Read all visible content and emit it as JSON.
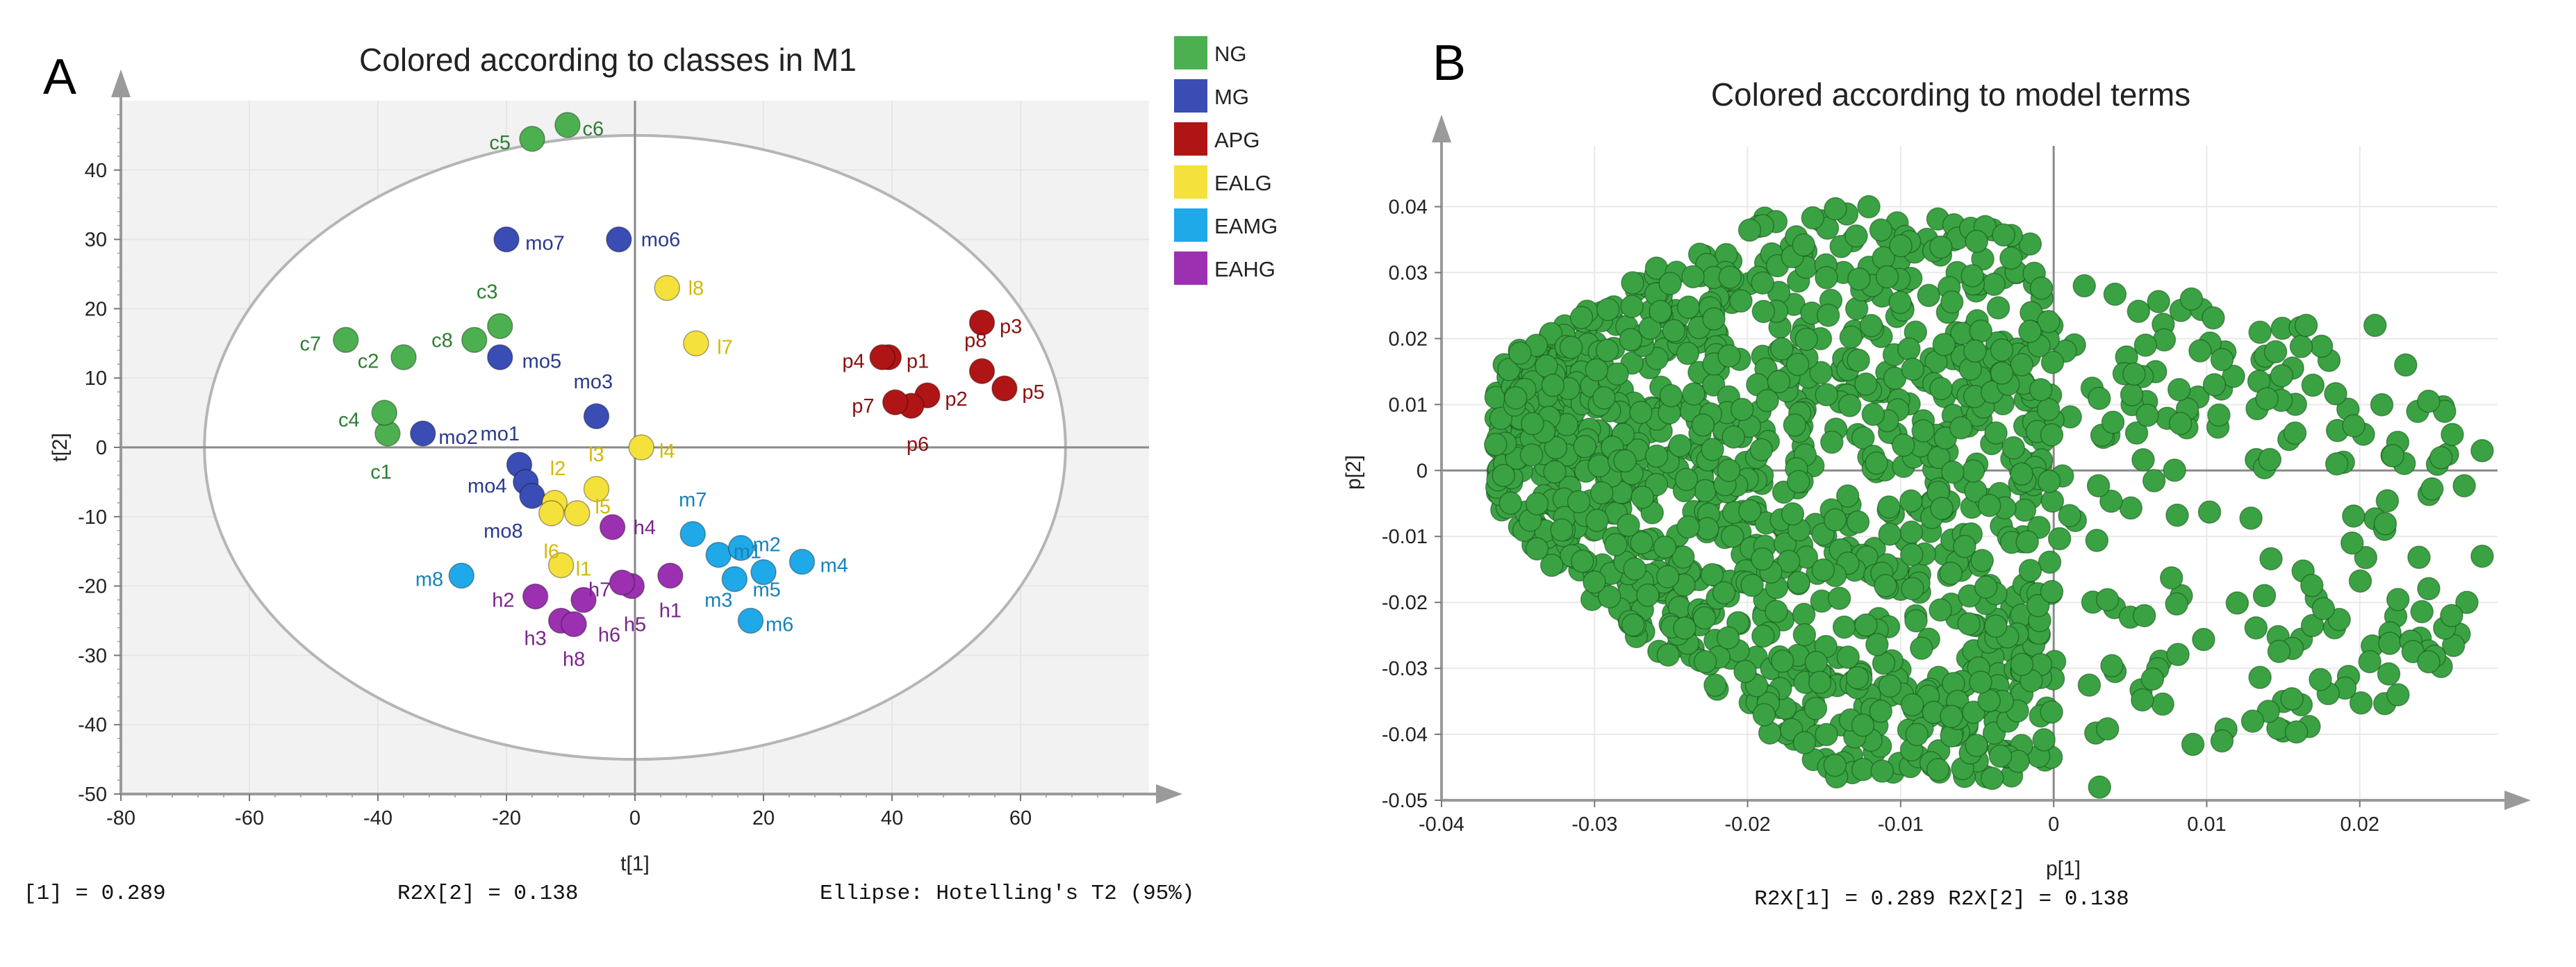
{
  "panels": [
    {
      "letter": "A",
      "footer": {
        "left": "[1] = 0.289",
        "center": "R2X[2] = 0.138",
        "right": "Ellipse: Hotelling's T2 (95%)"
      }
    },
    {
      "letter": "B",
      "footer": {
        "center": "R2X[1] = 0.289 R2X[2] = 0.138"
      }
    }
  ],
  "chart_data": [
    {
      "type": "scatter",
      "title": "Colored according to classes in M1",
      "xlabel": "t[1]",
      "ylabel": "t[2]",
      "xlim": [
        -80,
        80
      ],
      "ylim": [
        -50,
        50
      ],
      "xticks": [
        -80,
        -60,
        -40,
        -20,
        0,
        20,
        40,
        60
      ],
      "yticks": [
        -50,
        -40,
        -30,
        -20,
        -10,
        0,
        10,
        20,
        30,
        40
      ],
      "ellipse": {
        "label": "Hotelling's T2 (95%)",
        "center": [
          0,
          0
        ],
        "semi_axes": [
          67,
          45
        ]
      },
      "legend": [
        {
          "name": "NG",
          "color": "#4caf50"
        },
        {
          "name": "MG",
          "color": "#3a4db5"
        },
        {
          "name": "APG",
          "color": "#b01515"
        },
        {
          "name": "EALG",
          "color": "#f5e13c"
        },
        {
          "name": "EAMG",
          "color": "#1fa9e8"
        },
        {
          "name": "EAHG",
          "color": "#9b30b0"
        }
      ],
      "series": [
        {
          "name": "NG",
          "color": "#4caf50",
          "label_color": "#2e7d32",
          "points": [
            {
              "label": "c1",
              "x": -38.5,
              "y": 2,
              "lx": -39.5,
              "ly": -3.5
            },
            {
              "label": "c2",
              "x": -36,
              "y": 13,
              "lx": -41.5,
              "ly": 12.5
            },
            {
              "label": "c3",
              "x": -21,
              "y": 17.5,
              "lx": -23,
              "ly": 22.5
            },
            {
              "label": "c4",
              "x": -39,
              "y": 5,
              "lx": -44.5,
              "ly": 4
            },
            {
              "label": "c5",
              "x": -16,
              "y": 44.5,
              "lx": -21,
              "ly": 44
            },
            {
              "label": "c6",
              "x": -10.5,
              "y": 46.5,
              "lx": -6.5,
              "ly": 46
            },
            {
              "label": "c7",
              "x": -45,
              "y": 15.5,
              "lx": -50.5,
              "ly": 15
            },
            {
              "label": "c8",
              "x": -25,
              "y": 15.5,
              "lx": -30,
              "ly": 15.5
            }
          ]
        },
        {
          "name": "MG",
          "color": "#3a4db5",
          "label_color": "#2a3a8c",
          "points": [
            {
              "label": "mo1",
              "x": -18,
              "y": -2.5,
              "lx": -21,
              "ly": 2
            },
            {
              "label": "mo2",
              "x": -33,
              "y": 2,
              "lx": -27.5,
              "ly": 1.5
            },
            {
              "label": "mo3",
              "x": -6,
              "y": 4.5,
              "lx": -6.5,
              "ly": 9.5
            },
            {
              "label": "mo4",
              "x": -17,
              "y": -5,
              "lx": -23,
              "ly": -5.5
            },
            {
              "label": "mo5",
              "x": -21,
              "y": 13,
              "lx": -14.5,
              "ly": 12.5
            },
            {
              "label": "mo6",
              "x": -2.5,
              "y": 30,
              "lx": 4,
              "ly": 30
            },
            {
              "label": "mo7",
              "x": -20,
              "y": 30,
              "lx": -14,
              "ly": 29.5
            },
            {
              "label": "mo8",
              "x": -16,
              "y": -7,
              "lx": -20.5,
              "ly": -12
            }
          ]
        },
        {
          "name": "APG",
          "color": "#b01515",
          "label_color": "#8b1010",
          "points": [
            {
              "label": "p1",
              "x": 39.5,
              "y": 13,
              "lx": 44,
              "ly": 12.5
            },
            {
              "label": "p2",
              "x": 45.5,
              "y": 7.5,
              "lx": 50,
              "ly": 7
            },
            {
              "label": "p3",
              "x": 54,
              "y": 18,
              "lx": 58.5,
              "ly": 17.5
            },
            {
              "label": "p4",
              "x": 38.5,
              "y": 13,
              "lx": 34,
              "ly": 12.5
            },
            {
              "label": "p5",
              "x": 57.5,
              "y": 8.5,
              "lx": 62,
              "ly": 8
            },
            {
              "label": "p6",
              "x": 43,
              "y": 6,
              "lx": 44,
              "ly": 0.5
            },
            {
              "label": "p7",
              "x": 40.5,
              "y": 6.5,
              "lx": 35.5,
              "ly": 6
            },
            {
              "label": "p8",
              "x": 54,
              "y": 11,
              "lx": 53,
              "ly": 15.5
            }
          ]
        },
        {
          "name": "EALG",
          "color": "#f5e13c",
          "label_color": "#d4b800",
          "points": [
            {
              "label": "l1",
              "x": -11.5,
              "y": -17,
              "lx": -8,
              "ly": -17.5
            },
            {
              "label": "l2",
              "x": -12.5,
              "y": -8,
              "lx": -12,
              "ly": -3
            },
            {
              "label": "l3",
              "x": -6,
              "y": -6,
              "lx": -6,
              "ly": -1
            },
            {
              "label": "l4",
              "x": 1,
              "y": 0,
              "lx": 5,
              "ly": -0.5
            },
            {
              "label": "l5",
              "x": -9,
              "y": -9.5,
              "lx": -5,
              "ly": -8.5
            },
            {
              "label": "l6",
              "x": -13,
              "y": -9.5,
              "lx": -13,
              "ly": -15
            },
            {
              "label": "l7",
              "x": 9.5,
              "y": 15,
              "lx": 14,
              "ly": 14.5
            },
            {
              "label": "l8",
              "x": 5,
              "y": 23,
              "lx": 9.5,
              "ly": 23
            }
          ]
        },
        {
          "name": "EAMG",
          "color": "#1fa9e8",
          "label_color": "#1782b8",
          "points": [
            {
              "label": "m1",
              "x": 13,
              "y": -15.5,
              "lx": 17.5,
              "ly": -15
            },
            {
              "label": "m2",
              "x": 16.5,
              "y": -14.5,
              "lx": 20.5,
              "ly": -14
            },
            {
              "label": "m3",
              "x": 15.5,
              "y": -19,
              "lx": 13,
              "ly": -22
            },
            {
              "label": "m4",
              "x": 26,
              "y": -16.5,
              "lx": 31,
              "ly": -17
            },
            {
              "label": "m5",
              "x": 20,
              "y": -18,
              "lx": 20.5,
              "ly": -20.5
            },
            {
              "label": "m6",
              "x": 18,
              "y": -25,
              "lx": 22.5,
              "ly": -25.5
            },
            {
              "label": "m7",
              "x": 9,
              "y": -12.5,
              "lx": 9,
              "ly": -7.5
            },
            {
              "label": "m8",
              "x": -27,
              "y": -18.5,
              "lx": -32,
              "ly": -19
            }
          ]
        },
        {
          "name": "EAHG",
          "color": "#9b30b0",
          "label_color": "#7a248c",
          "points": [
            {
              "label": "h1",
              "x": 5.5,
              "y": -18.5,
              "lx": 5.5,
              "ly": -23.5
            },
            {
              "label": "h2",
              "x": -15.5,
              "y": -21.5,
              "lx": -20.5,
              "ly": -22
            },
            {
              "label": "h3",
              "x": -11.5,
              "y": -25,
              "lx": -15.5,
              "ly": -27.5
            },
            {
              "label": "h4",
              "x": -3.5,
              "y": -11.5,
              "lx": 1.5,
              "ly": -11.5
            },
            {
              "label": "h5",
              "x": -0.5,
              "y": -20,
              "lx": 0,
              "ly": -25.5
            },
            {
              "label": "h6",
              "x": -2,
              "y": -19.5,
              "lx": -4,
              "ly": -27
            },
            {
              "label": "h7",
              "x": -8,
              "y": -22,
              "lx": -5.5,
              "ly": -20.5
            },
            {
              "label": "h8",
              "x": -9.5,
              "y": -25.5,
              "lx": -9.5,
              "ly": -30.5
            }
          ]
        }
      ]
    },
    {
      "type": "scatter",
      "title": "Colored according to model terms",
      "xlabel": "p[1]",
      "ylabel": "p[2]",
      "xlim": [
        -0.04,
        0.029
      ],
      "ylim": [
        -0.05,
        0.045
      ],
      "xticks": [
        "-0.04",
        "-0.03",
        "-0.02",
        "-0.01",
        "0",
        "0.01",
        "0.02"
      ],
      "yticks": [
        "-0.05",
        "-0.04",
        "-0.03",
        "-0.02",
        "-0.01",
        "0",
        "0.01",
        "0.02",
        "0.03",
        "0.04"
      ],
      "point_color": "#3aa243",
      "n_points_approx": 1400,
      "outline": {
        "x": [
          -0.0365,
          -0.036,
          -0.033,
          -0.03,
          -0.027,
          -0.024,
          -0.021,
          -0.018,
          -0.015,
          -0.012,
          -0.009,
          -0.006,
          -0.003,
          -0.0015,
          0.0,
          0.003,
          0.006,
          0.009,
          0.012,
          0.015,
          0.018,
          0.021,
          0.024,
          0.0275
        ],
        "top": [
          0.012,
          0.017,
          0.021,
          0.026,
          0.03,
          0.034,
          0.037,
          0.04,
          0.041,
          0.04,
          0.039,
          0.038,
          0.036,
          0.035,
          0.03,
          0.028,
          0.028,
          0.026,
          0.024,
          0.023,
          0.022,
          0.019,
          0.014,
          0.006
        ],
        "bottom": [
          -0.004,
          -0.008,
          -0.014,
          -0.021,
          -0.026,
          -0.03,
          -0.035,
          -0.042,
          -0.046,
          -0.048,
          -0.048,
          -0.048,
          -0.047,
          -0.045,
          -0.044,
          -0.041,
          -0.04,
          -0.042,
          -0.04,
          -0.04,
          -0.039,
          -0.036,
          -0.034,
          -0.024
        ]
      },
      "extra_points": [
        [
          0.028,
          0.003
        ],
        [
          0.028,
          -0.013
        ],
        [
          0.027,
          -0.02
        ],
        [
          0.0245,
          0.0105
        ],
        [
          0.023,
          0.016
        ],
        [
          0.021,
          0.022
        ],
        [
          0.0185,
          0.001
        ],
        [
          0.0225,
          -0.034
        ],
        [
          0.0245,
          -0.029
        ],
        [
          0.0195,
          -0.011
        ],
        [
          0.0145,
          0.018
        ],
        [
          0.002,
          0.028
        ],
        [
          0.003,
          -0.048
        ],
        [
          0.011,
          -0.041
        ],
        [
          0.009,
          0.026
        ],
        [
          0.0165,
          0.022
        ],
        [
          0.013,
          -0.038
        ],
        [
          0.006,
          0.019
        ],
        [
          0.0105,
          0.013
        ],
        [
          0.026,
          -0.022
        ]
      ]
    }
  ]
}
